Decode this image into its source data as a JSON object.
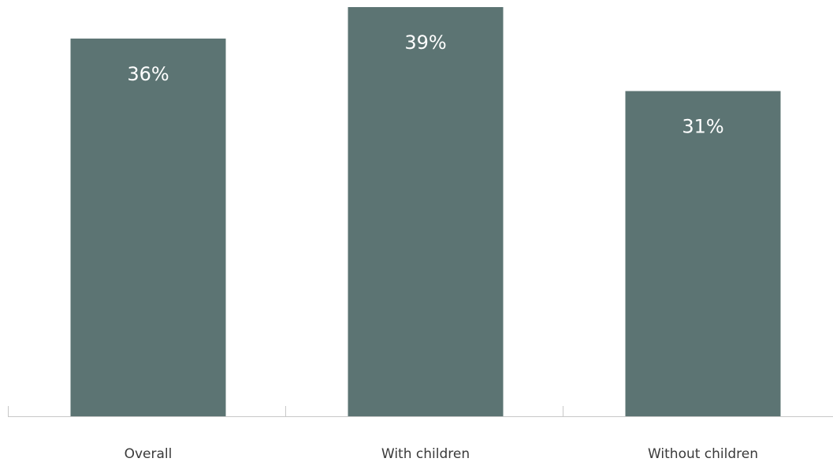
{
  "chart_data": {
    "type": "bar",
    "categories": [
      "Overall",
      "With children",
      "Without children"
    ],
    "values": [
      36,
      39,
      31
    ],
    "value_labels": [
      "36%",
      "39%",
      "31%"
    ],
    "ylim": [
      0,
      40
    ],
    "grid": false,
    "legend": "none",
    "colors": {
      "bar": "#5c7473",
      "axis": "#c8c8c8",
      "label": "#ffffff",
      "tick_text": "#3a3a3a"
    }
  }
}
